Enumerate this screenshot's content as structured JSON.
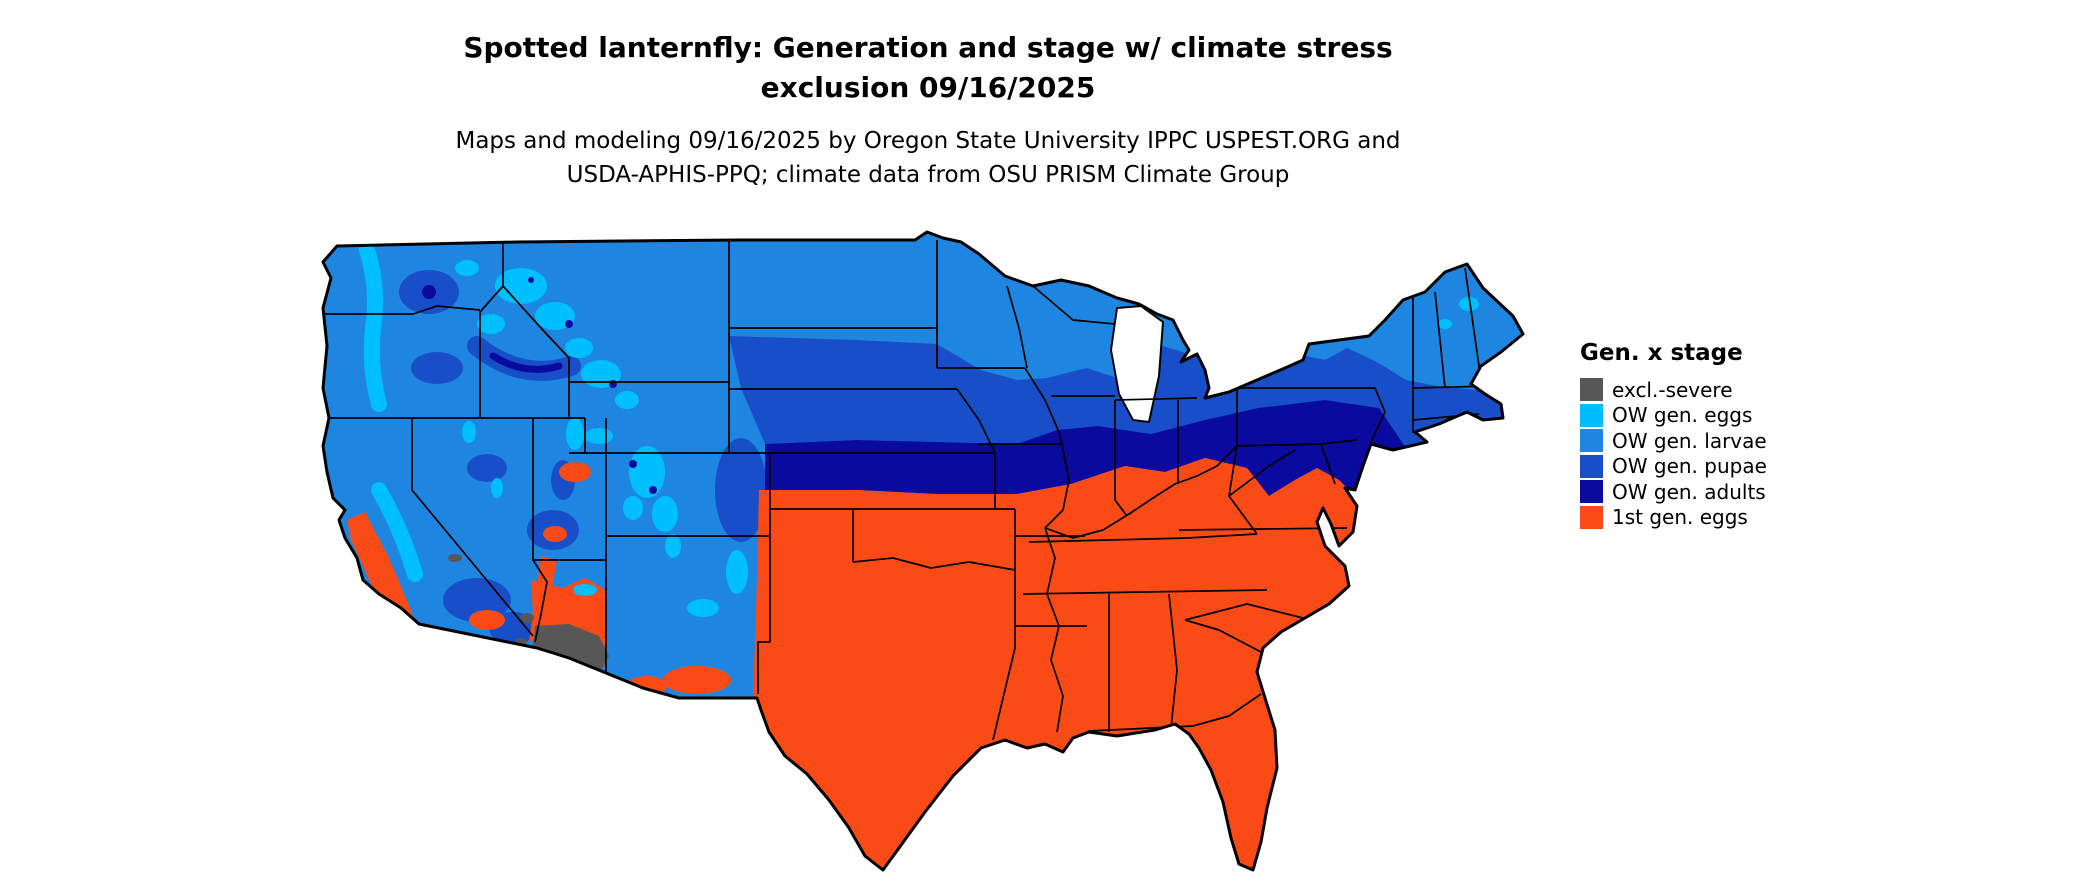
{
  "title": {
    "line1": "Spotted lanternfly: Generation and stage w/ climate stress",
    "line2": "exclusion 09/16/2025"
  },
  "subtitle": {
    "line1": "Maps and modeling 09/16/2025 by Oregon State University IPPC USPEST.ORG and",
    "line2": "USDA-APHIS-PPQ; climate data from OSU PRISM Climate Group"
  },
  "legend": {
    "title": "Gen. x stage",
    "items": [
      {
        "label": "excl.-severe",
        "color": "#575757"
      },
      {
        "label": "OW gen. eggs",
        "color": "#00BFFF"
      },
      {
        "label": "OW gen. larvae",
        "color": "#1E86E0"
      },
      {
        "label": "OW gen. pupae",
        "color": "#184FC8"
      },
      {
        "label": "OW gen. adults",
        "color": "#0A0A9E"
      },
      {
        "label": "1st gen. eggs",
        "color": "#FA4B16"
      }
    ]
  },
  "map": {
    "outline_color": "#000000",
    "state_border_color": "#000000",
    "water_color": "#ffffff"
  }
}
